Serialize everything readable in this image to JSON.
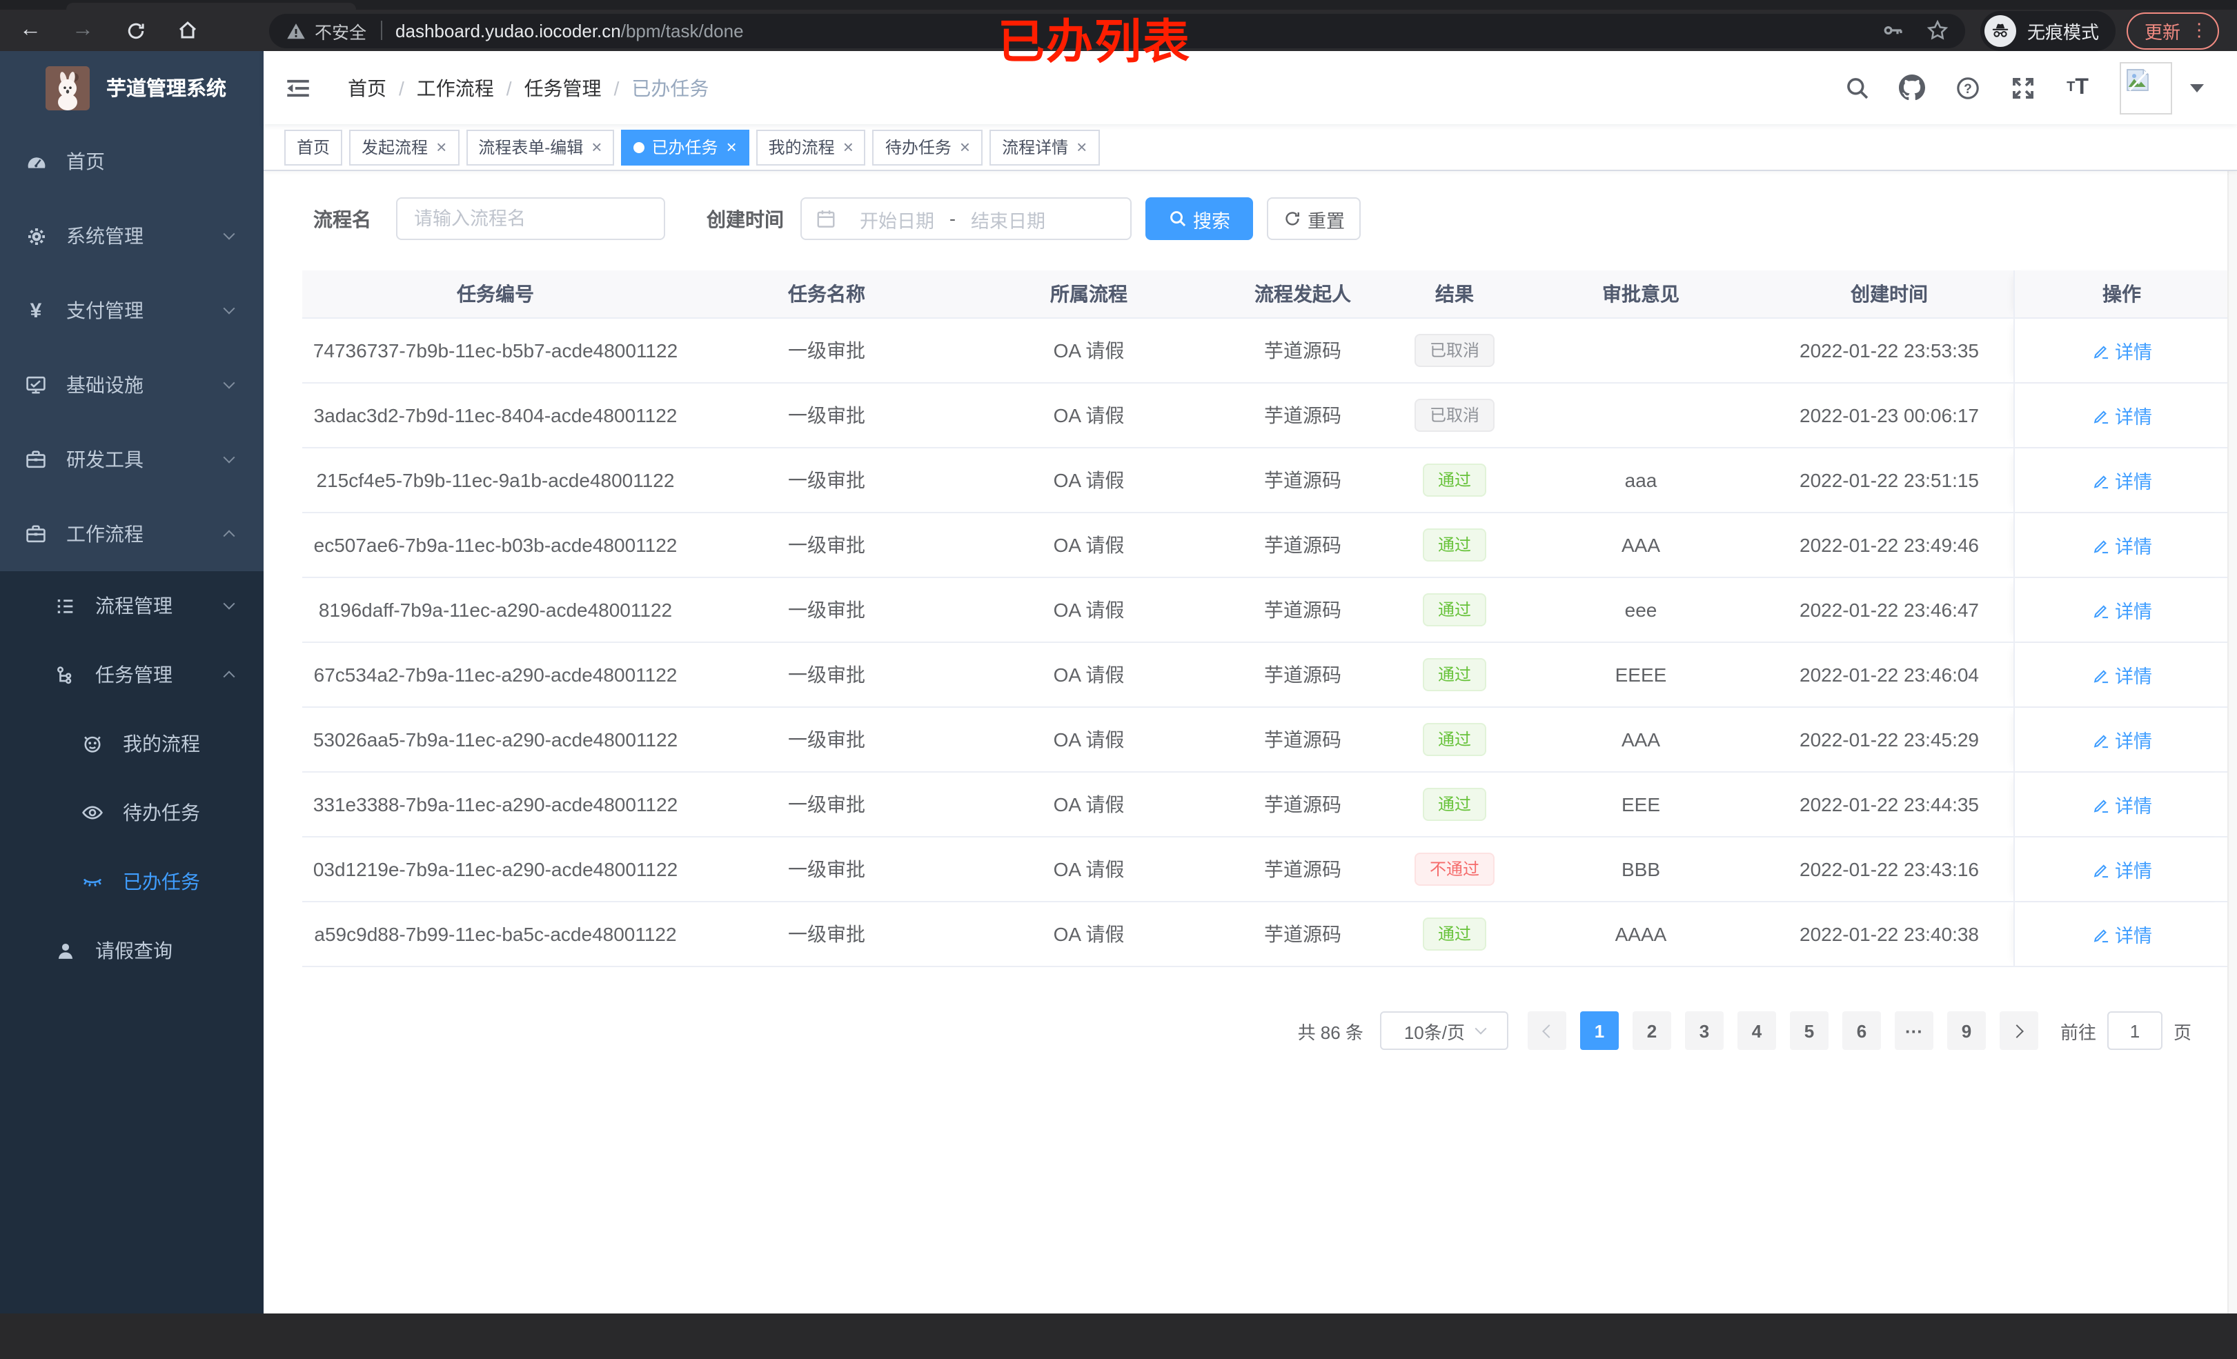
{
  "browser": {
    "overlay_title": "已办列表",
    "security_label": "不安全",
    "url_host": "dashboard.yudao.iocoder.cn",
    "url_path": "/bpm/task/done",
    "incognito_label": "无痕模式",
    "update_label": "更新"
  },
  "sidebar": {
    "app_title": "芋道管理系统",
    "items": [
      {
        "key": "home",
        "label": "首页",
        "icon": "dashboard",
        "level": 1
      },
      {
        "key": "system",
        "label": "系统管理",
        "icon": "gear",
        "level": 1,
        "chevron": "down"
      },
      {
        "key": "payment",
        "label": "支付管理",
        "icon": "yen",
        "level": 1,
        "chevron": "down"
      },
      {
        "key": "infra",
        "label": "基础设施",
        "icon": "monitor",
        "level": 1,
        "chevron": "down"
      },
      {
        "key": "devtools",
        "label": "研发工具",
        "icon": "briefcase",
        "level": 1,
        "chevron": "down"
      },
      {
        "key": "workflow",
        "label": "工作流程",
        "icon": "briefcase",
        "level": 1,
        "chevron": "up"
      },
      {
        "key": "process-mgmt",
        "label": "流程管理",
        "icon": "list",
        "level": 2,
        "submenu": true,
        "chevron": "down"
      },
      {
        "key": "task-mgmt",
        "label": "任务管理",
        "icon": "tree",
        "level": 2,
        "submenu": true,
        "chevron": "up"
      },
      {
        "key": "my-process",
        "label": "我的流程",
        "icon": "face",
        "level": 3,
        "submenu": true
      },
      {
        "key": "todo-tasks",
        "label": "待办任务",
        "icon": "eye",
        "level": 3,
        "submenu": true
      },
      {
        "key": "done-tasks",
        "label": "已办任务",
        "icon": "eye-closed",
        "level": 3,
        "submenu": true,
        "active": true
      },
      {
        "key": "leave-query",
        "label": "请假查询",
        "icon": "user",
        "level": 2,
        "submenu": true
      }
    ]
  },
  "breadcrumb": {
    "items": [
      "首页",
      "工作流程",
      "任务管理",
      "已办任务"
    ]
  },
  "tags": [
    {
      "key": "home",
      "label": "首页",
      "closable": false,
      "active": false
    },
    {
      "key": "start-process",
      "label": "发起流程",
      "closable": true,
      "active": false
    },
    {
      "key": "form-edit",
      "label": "流程表单-编辑",
      "closable": true,
      "active": false
    },
    {
      "key": "done-tasks",
      "label": "已办任务",
      "closable": true,
      "active": true
    },
    {
      "key": "my-process",
      "label": "我的流程",
      "closable": true,
      "active": false
    },
    {
      "key": "todo-tasks",
      "label": "待办任务",
      "closable": true,
      "active": false
    },
    {
      "key": "process-detail",
      "label": "流程详情",
      "closable": true,
      "active": false
    }
  ],
  "filters": {
    "name_label": "流程名",
    "name_placeholder": "请输入流程名",
    "time_label": "创建时间",
    "start_placeholder": "开始日期",
    "range_separator": "-",
    "end_placeholder": "结束日期",
    "search_label": "搜索",
    "reset_label": "重置"
  },
  "table": {
    "columns": [
      "任务编号",
      "任务名称",
      "所属流程",
      "流程发起人",
      "结果",
      "审批意见",
      "创建时间",
      "操作"
    ],
    "action_label": "详情",
    "rows": [
      {
        "id": "74736737-7b9b-11ec-b5b7-acde48001122",
        "name": "一级审批",
        "process": "OA 请假",
        "starter": "芋道源码",
        "result": "已取消",
        "result_type": "info",
        "opinion": "",
        "created": "2022-01-22 23:53:35"
      },
      {
        "id": "3adac3d2-7b9d-11ec-8404-acde48001122",
        "name": "一级审批",
        "process": "OA 请假",
        "starter": "芋道源码",
        "result": "已取消",
        "result_type": "info",
        "opinion": "",
        "created": "2022-01-23 00:06:17"
      },
      {
        "id": "215cf4e5-7b9b-11ec-9a1b-acde48001122",
        "name": "一级审批",
        "process": "OA 请假",
        "starter": "芋道源码",
        "result": "通过",
        "result_type": "success",
        "opinion": "aaa",
        "created": "2022-01-22 23:51:15"
      },
      {
        "id": "ec507ae6-7b9a-11ec-b03b-acde48001122",
        "name": "一级审批",
        "process": "OA 请假",
        "starter": "芋道源码",
        "result": "通过",
        "result_type": "success",
        "opinion": "AAA",
        "created": "2022-01-22 23:49:46"
      },
      {
        "id": "8196daff-7b9a-11ec-a290-acde48001122",
        "name": "一级审批",
        "process": "OA 请假",
        "starter": "芋道源码",
        "result": "通过",
        "result_type": "success",
        "opinion": "eee",
        "created": "2022-01-22 23:46:47"
      },
      {
        "id": "67c534a2-7b9a-11ec-a290-acde48001122",
        "name": "一级审批",
        "process": "OA 请假",
        "starter": "芋道源码",
        "result": "通过",
        "result_type": "success",
        "opinion": "EEEE",
        "created": "2022-01-22 23:46:04"
      },
      {
        "id": "53026aa5-7b9a-11ec-a290-acde48001122",
        "name": "一级审批",
        "process": "OA 请假",
        "starter": "芋道源码",
        "result": "通过",
        "result_type": "success",
        "opinion": "AAA",
        "created": "2022-01-22 23:45:29"
      },
      {
        "id": "331e3388-7b9a-11ec-a290-acde48001122",
        "name": "一级审批",
        "process": "OA 请假",
        "starter": "芋道源码",
        "result": "通过",
        "result_type": "success",
        "opinion": "EEE",
        "created": "2022-01-22 23:44:35"
      },
      {
        "id": "03d1219e-7b9a-11ec-a290-acde48001122",
        "name": "一级审批",
        "process": "OA 请假",
        "starter": "芋道源码",
        "result": "不通过",
        "result_type": "danger",
        "opinion": "BBB",
        "created": "2022-01-22 23:43:16"
      },
      {
        "id": "a59c9d88-7b99-11ec-ba5c-acde48001122",
        "name": "一级审批",
        "process": "OA 请假",
        "starter": "芋道源码",
        "result": "通过",
        "result_type": "success",
        "opinion": "AAAA",
        "created": "2022-01-22 23:40:38"
      }
    ]
  },
  "pagination": {
    "total_label": "共 86 条",
    "page_size_label": "10条/页",
    "pages": [
      "1",
      "2",
      "3",
      "4",
      "5",
      "6",
      "···",
      "9"
    ],
    "active_page": "1",
    "jump_prefix": "前往",
    "jump_value": "1",
    "jump_suffix": "页"
  },
  "colors": {
    "accent": "#409eff",
    "success": "#67c23a",
    "danger": "#f56c6c",
    "info": "#909399",
    "sidebar_bg": "#304156",
    "submenu_bg": "#1f2d3d",
    "update_badge": "#f28b82",
    "overlay_red": "#ff1e00"
  }
}
